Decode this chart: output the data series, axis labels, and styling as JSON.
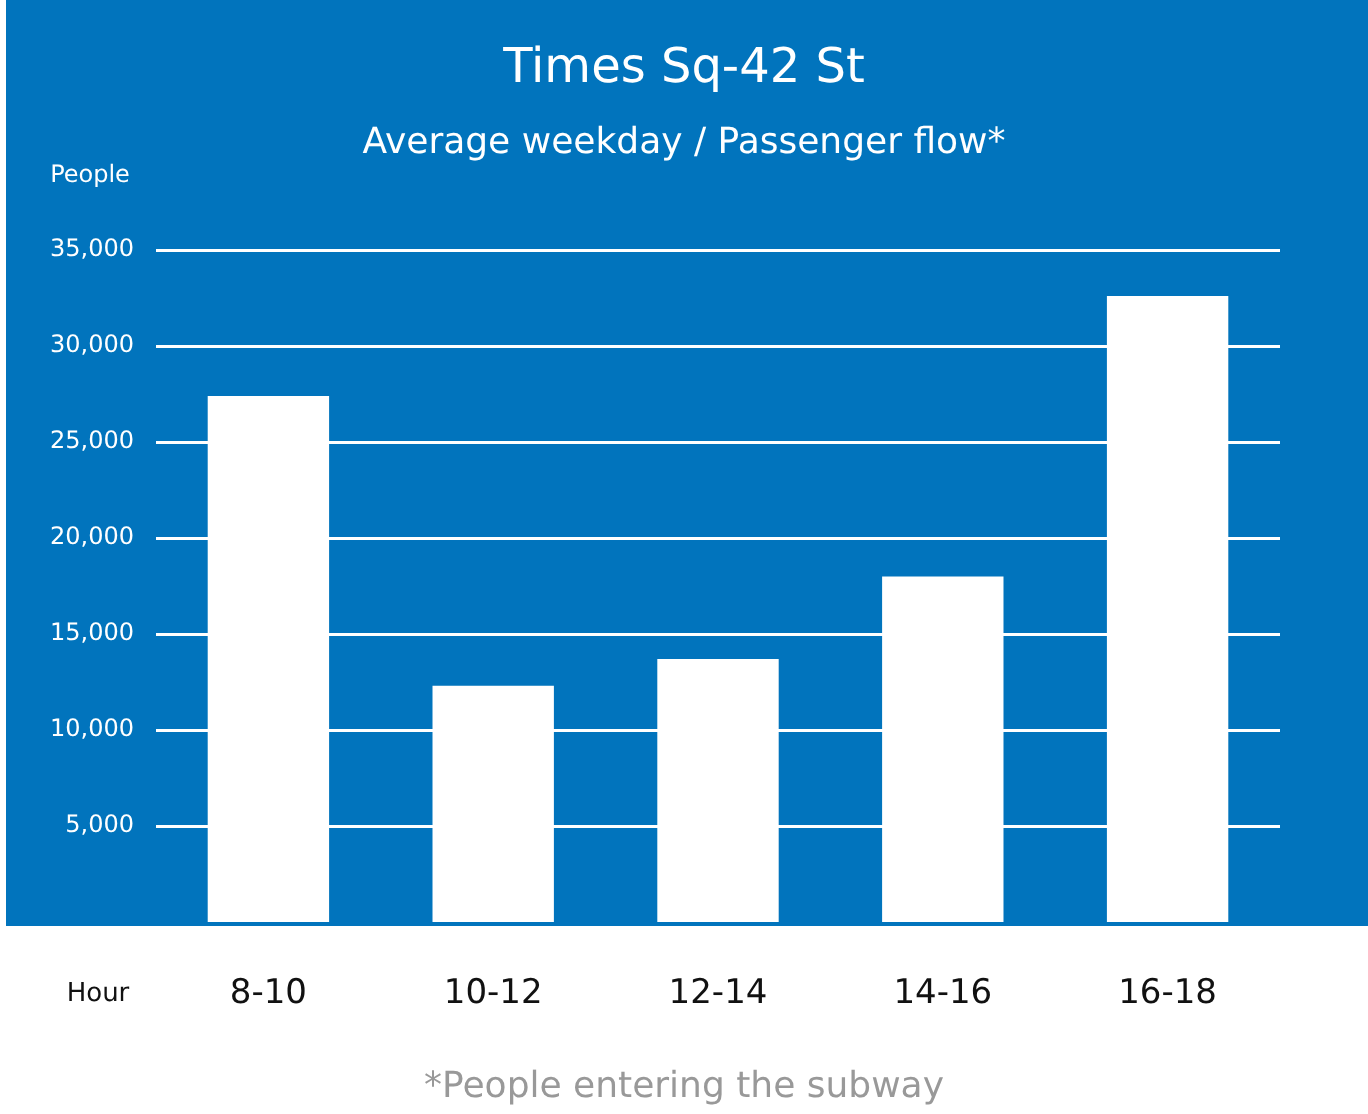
{
  "chart_data": {
    "type": "bar",
    "title": "Times Sq-42 St",
    "subtitle": "Average weekday / Passenger flow*",
    "ylabel": "People",
    "xlabel": "Hour",
    "categories": [
      "8-10",
      "10-12",
      "12-14",
      "14-16",
      "16-18"
    ],
    "values": [
      27400,
      12300,
      13700,
      18000,
      32600
    ],
    "color": "#ffffff",
    "ylim": [
      0,
      35000
    ],
    "yticks": [
      {
        "value": 5000,
        "label": "5,000"
      },
      {
        "value": 10000,
        "label": "10,000"
      },
      {
        "value": 15000,
        "label": "15,000"
      },
      {
        "value": 20000,
        "label": "20,000"
      },
      {
        "value": 25000,
        "label": "25,000"
      },
      {
        "value": 30000,
        "label": "30,000"
      },
      {
        "value": 35000,
        "label": "35,000"
      }
    ],
    "grid": "y",
    "annotations": [
      "*People entering the subway"
    ]
  }
}
